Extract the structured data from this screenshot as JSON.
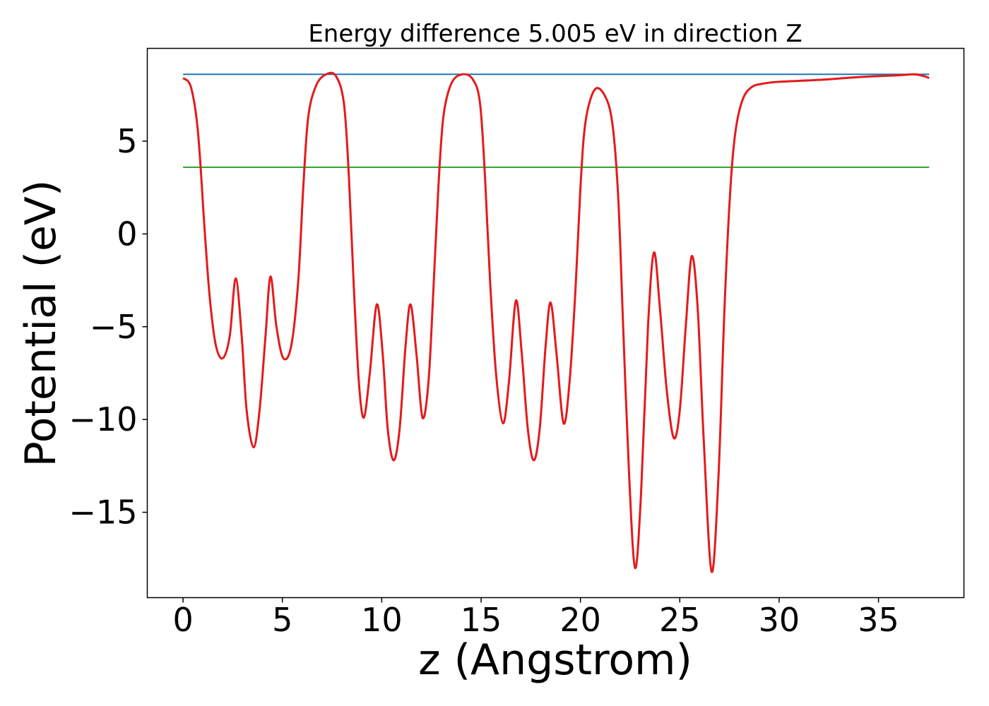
{
  "chart_data": {
    "type": "line",
    "title": "Energy difference 5.005 eV in direction Z",
    "xlabel": "z (Angstrom)",
    "ylabel": "Potential (eV)",
    "xlim": [
      -1.8,
      39.3
    ],
    "ylim": [
      -19.6,
      10.0
    ],
    "x_ticks": [
      0,
      5,
      10,
      15,
      20,
      25,
      30,
      35
    ],
    "y_ticks": [
      -15,
      -10,
      -5,
      0,
      5
    ],
    "x_tick_labels": [
      "0",
      "5",
      "10",
      "15",
      "20",
      "25",
      "30",
      "35"
    ],
    "y_tick_labels": [
      "−15",
      "−10",
      "−5",
      "0",
      "5"
    ],
    "grid": false,
    "series": [
      {
        "kind": "curve",
        "color": "#e31a1c",
        "points": [
          [
            0.0,
            8.4
          ],
          [
            0.4,
            7.9
          ],
          [
            0.75,
            5.5
          ],
          [
            1.1,
            0.0
          ],
          [
            1.35,
            -3.5
          ],
          [
            1.65,
            -6.0
          ],
          [
            2.0,
            -6.7
          ],
          [
            2.35,
            -5.5
          ],
          [
            2.65,
            -2.4
          ],
          [
            2.95,
            -5.5
          ],
          [
            3.2,
            -9.5
          ],
          [
            3.55,
            -11.5
          ],
          [
            3.85,
            -9.5
          ],
          [
            4.15,
            -5.5
          ],
          [
            4.4,
            -2.3
          ],
          [
            4.7,
            -5.0
          ],
          [
            5.05,
            -6.7
          ],
          [
            5.45,
            -6.0
          ],
          [
            5.8,
            -2.5
          ],
          [
            6.05,
            2.5
          ],
          [
            6.3,
            6.3
          ],
          [
            6.7,
            8.0
          ],
          [
            7.2,
            8.6
          ],
          [
            7.7,
            8.5
          ],
          [
            8.1,
            7.0
          ],
          [
            8.35,
            3.0
          ],
          [
            8.6,
            -3.0
          ],
          [
            8.85,
            -8.0
          ],
          [
            9.1,
            -9.9
          ],
          [
            9.4,
            -7.5
          ],
          [
            9.75,
            -3.8
          ],
          [
            10.05,
            -6.5
          ],
          [
            10.3,
            -10.5
          ],
          [
            10.6,
            -12.2
          ],
          [
            10.9,
            -10.5
          ],
          [
            11.2,
            -6.0
          ],
          [
            11.45,
            -3.8
          ],
          [
            11.75,
            -6.5
          ],
          [
            12.05,
            -9.9
          ],
          [
            12.35,
            -8.0
          ],
          [
            12.6,
            -3.0
          ],
          [
            12.85,
            2.5
          ],
          [
            13.1,
            6.3
          ],
          [
            13.5,
            8.1
          ],
          [
            14.05,
            8.6
          ],
          [
            14.6,
            8.3
          ],
          [
            14.95,
            7.0
          ],
          [
            15.2,
            3.0
          ],
          [
            15.45,
            -2.5
          ],
          [
            15.75,
            -7.5
          ],
          [
            16.1,
            -10.2
          ],
          [
            16.4,
            -8.0
          ],
          [
            16.75,
            -3.6
          ],
          [
            17.05,
            -6.5
          ],
          [
            17.35,
            -10.5
          ],
          [
            17.65,
            -12.2
          ],
          [
            17.95,
            -10.5
          ],
          [
            18.25,
            -6.0
          ],
          [
            18.5,
            -3.7
          ],
          [
            18.8,
            -6.5
          ],
          [
            19.15,
            -10.2
          ],
          [
            19.45,
            -8.0
          ],
          [
            19.75,
            -3.0
          ],
          [
            20.0,
            2.5
          ],
          [
            20.25,
            6.0
          ],
          [
            20.7,
            7.75
          ],
          [
            21.2,
            7.5
          ],
          [
            21.6,
            6.0
          ],
          [
            21.9,
            2.0
          ],
          [
            22.15,
            -5.0
          ],
          [
            22.45,
            -13.0
          ],
          [
            22.75,
            -18.0
          ],
          [
            23.05,
            -14.0
          ],
          [
            23.4,
            -5.0
          ],
          [
            23.7,
            -1.0
          ],
          [
            24.0,
            -4.0
          ],
          [
            24.35,
            -8.5
          ],
          [
            24.7,
            -11.0
          ],
          [
            25.0,
            -9.5
          ],
          [
            25.3,
            -5.0
          ],
          [
            25.6,
            -1.2
          ],
          [
            25.9,
            -4.0
          ],
          [
            26.2,
            -11.0
          ],
          [
            26.6,
            -18.2
          ],
          [
            26.95,
            -13.0
          ],
          [
            27.25,
            -4.0
          ],
          [
            27.55,
            2.5
          ],
          [
            27.8,
            5.5
          ],
          [
            28.15,
            7.2
          ],
          [
            28.6,
            7.9
          ],
          [
            29.2,
            8.1
          ],
          [
            30.0,
            8.2
          ],
          [
            32.0,
            8.3
          ],
          [
            34.0,
            8.45
          ],
          [
            36.0,
            8.55
          ],
          [
            36.8,
            8.6
          ],
          [
            37.3,
            8.5
          ],
          [
            37.55,
            8.4
          ]
        ]
      },
      {
        "kind": "hline",
        "color": "#1f77b4",
        "y": 8.6,
        "x_range": [
          0,
          37.55
        ]
      },
      {
        "kind": "hline",
        "color": "#2ca02c",
        "y": 3.595,
        "x_range": [
          0,
          37.55
        ]
      }
    ]
  }
}
